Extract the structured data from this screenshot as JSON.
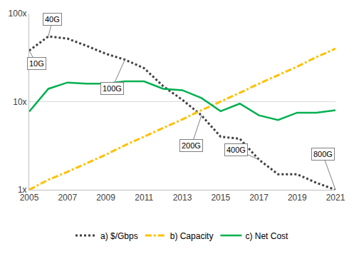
{
  "chart_data": {
    "type": "line",
    "log": "y",
    "grid": true,
    "legend": "bottom",
    "x": [
      2005,
      2006,
      2007,
      2008,
      2009,
      2010,
      2011,
      2012,
      2013,
      2014,
      2015,
      2016,
      2017,
      2018,
      2019,
      2020,
      2021
    ],
    "xlim": [
      2005,
      2021
    ],
    "xticks": [
      2005,
      2007,
      2009,
      2011,
      2013,
      2015,
      2017,
      2019,
      2021
    ],
    "ylim": [
      1,
      100
    ],
    "yticks": [
      {
        "value": 1,
        "label": "1x"
      },
      {
        "value": 10,
        "label": "10x"
      },
      {
        "value": 100,
        "label": "100x"
      }
    ],
    "series": [
      {
        "name": "a) $/Gbps",
        "color": "#404040",
        "line_style": "dot",
        "values": [
          38,
          55,
          52,
          43,
          35,
          30,
          24,
          15,
          10.5,
          7,
          4,
          3.8,
          2.2,
          1.5,
          1.5,
          1.2,
          1.0
        ]
      },
      {
        "name": "b) Capacity",
        "color": "#FFC000",
        "line_style": "dashdot",
        "values": [
          1.0,
          1.3,
          1.6,
          2.0,
          2.5,
          3.2,
          4.0,
          5.0,
          6.3,
          8.0,
          10,
          12.6,
          16,
          20,
          25,
          32,
          40
        ]
      },
      {
        "name": "c) Net Cost",
        "color": "#00B050",
        "line_style": "solid",
        "values": [
          7.7,
          14,
          16.5,
          16,
          16,
          17,
          17,
          14,
          13.5,
          11,
          7.8,
          9.5,
          7,
          6.2,
          7.5,
          7.5,
          8
        ]
      }
    ],
    "annotations": [
      {
        "text": "10G",
        "x": 2005,
        "y": 38
      },
      {
        "text": "40G",
        "x": 2006,
        "y": 55
      },
      {
        "text": "100G",
        "x": 2010,
        "y": 30
      },
      {
        "text": "200G",
        "x": 2014,
        "y": 7
      },
      {
        "text": "400G",
        "x": 2017,
        "y": 2.2
      },
      {
        "text": "800G",
        "x": 2021,
        "y": 1.0
      }
    ]
  }
}
